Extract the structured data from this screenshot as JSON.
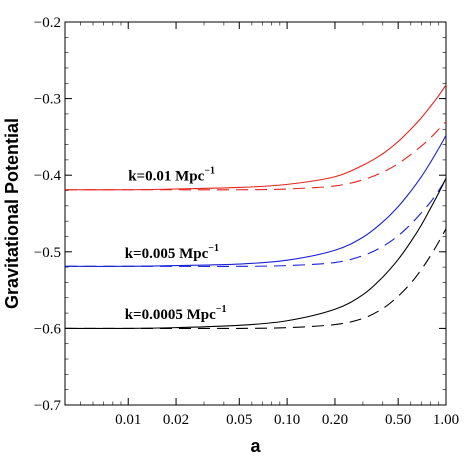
{
  "chart_data": {
    "type": "line",
    "xlabel": "a",
    "ylabel": "Gravitational Potential",
    "xscale": "log",
    "xlim": [
      0.004,
      1.0
    ],
    "ylim": [
      -0.7,
      -0.2
    ],
    "x_ticks": [
      {
        "value": 0.01,
        "label": "0.01"
      },
      {
        "value": 0.02,
        "label": "0.02"
      },
      {
        "value": 0.05,
        "label": "0.05"
      },
      {
        "value": 0.1,
        "label": "0.10"
      },
      {
        "value": 0.2,
        "label": "0.20"
      },
      {
        "value": 0.5,
        "label": "0.50"
      },
      {
        "value": 1.0,
        "label": "1.00"
      }
    ],
    "y_ticks": [
      {
        "value": -0.2,
        "label": "−0.2"
      },
      {
        "value": -0.3,
        "label": "−0.3"
      },
      {
        "value": -0.4,
        "label": "−0.4"
      },
      {
        "value": -0.5,
        "label": "−0.5"
      },
      {
        "value": -0.6,
        "label": "−0.6"
      },
      {
        "value": -0.7,
        "label": "−0.7"
      }
    ],
    "grid": false,
    "series": [
      {
        "name": "k=0.01 Mpc⁻¹",
        "label_main": "k=0.01 Mpc",
        "label_sup": "−1",
        "label_at": [
          0.01,
          -0.407
        ],
        "color": "#e8221a",
        "solid": {
          "x": [
            0.004,
            0.01,
            0.02,
            0.05,
            0.1,
            0.2,
            0.3,
            0.4,
            0.5,
            0.6,
            0.7,
            0.8,
            0.9,
            1.0
          ],
          "y": [
            -0.419,
            -0.419,
            -0.418,
            -0.416,
            -0.412,
            -0.402,
            -0.387,
            -0.372,
            -0.356,
            -0.34,
            -0.325,
            -0.31,
            -0.296,
            -0.282
          ]
        },
        "dashed": {
          "x": [
            0.004,
            0.01,
            0.02,
            0.05,
            0.1,
            0.2,
            0.3,
            0.4,
            0.5,
            0.6,
            0.7,
            0.8,
            0.9,
            1.0
          ],
          "y": [
            -0.419,
            -0.419,
            -0.419,
            -0.419,
            -0.418,
            -0.414,
            -0.406,
            -0.396,
            -0.385,
            -0.373,
            -0.362,
            -0.351,
            -0.34,
            -0.33
          ]
        }
      },
      {
        "name": "k=0.005 Mpc⁻¹",
        "label_main": "k=0.005 Mpc",
        "label_sup": "−1",
        "label_at": [
          0.0095,
          -0.508
        ],
        "color": "#1a21d6",
        "solid": {
          "x": [
            0.004,
            0.01,
            0.02,
            0.05,
            0.1,
            0.2,
            0.3,
            0.4,
            0.5,
            0.6,
            0.7,
            0.8,
            0.9,
            1.0
          ],
          "y": [
            -0.519,
            -0.519,
            -0.518,
            -0.516,
            -0.511,
            -0.498,
            -0.481,
            -0.461,
            -0.441,
            -0.421,
            -0.402,
            -0.383,
            -0.365,
            -0.348
          ]
        },
        "dashed": {
          "x": [
            0.004,
            0.01,
            0.02,
            0.05,
            0.1,
            0.2,
            0.3,
            0.4,
            0.5,
            0.6,
            0.7,
            0.8,
            0.9,
            1.0
          ],
          "y": [
            -0.519,
            -0.519,
            -0.519,
            -0.519,
            -0.518,
            -0.514,
            -0.505,
            -0.493,
            -0.479,
            -0.464,
            -0.449,
            -0.435,
            -0.42,
            -0.405
          ]
        }
      },
      {
        "name": "k=0.0005 Mpc⁻¹",
        "label_main": "k=0.0005 Mpc",
        "label_sup": "−1",
        "label_at": [
          0.0095,
          -0.588
        ],
        "color": "#000000",
        "solid": {
          "x": [
            0.004,
            0.01,
            0.02,
            0.05,
            0.1,
            0.2,
            0.3,
            0.4,
            0.5,
            0.6,
            0.7,
            0.8,
            0.9,
            1.0
          ],
          "y": [
            -0.6,
            -0.6,
            -0.599,
            -0.596,
            -0.59,
            -0.575,
            -0.556,
            -0.533,
            -0.51,
            -0.487,
            -0.465,
            -0.443,
            -0.423,
            -0.404
          ]
        },
        "dashed": {
          "x": [
            0.004,
            0.01,
            0.02,
            0.05,
            0.1,
            0.2,
            0.3,
            0.4,
            0.5,
            0.6,
            0.7,
            0.8,
            0.9,
            1.0
          ],
          "y": [
            -0.6,
            -0.6,
            -0.6,
            -0.6,
            -0.599,
            -0.595,
            -0.587,
            -0.574,
            -0.558,
            -0.541,
            -0.523,
            -0.505,
            -0.487,
            -0.47
          ]
        }
      }
    ]
  }
}
